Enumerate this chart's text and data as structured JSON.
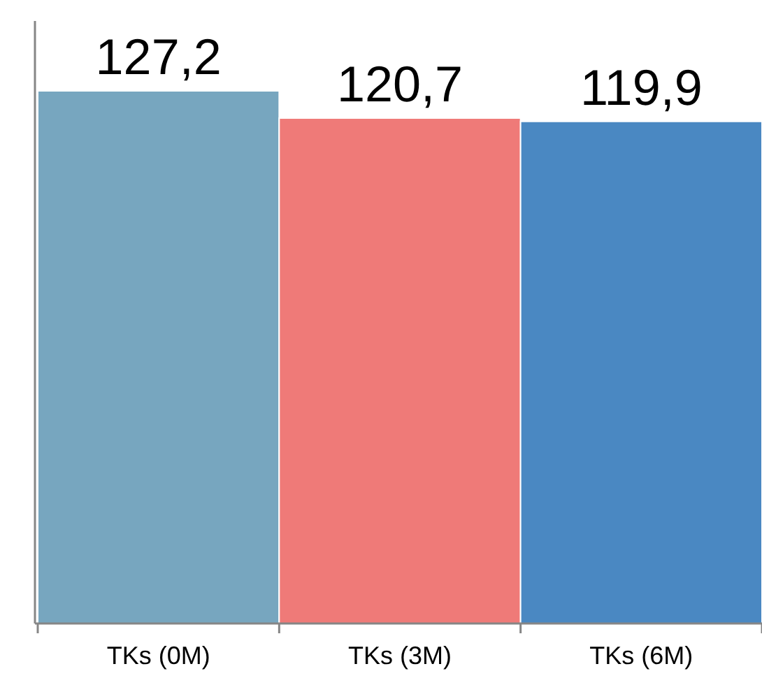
{
  "chart_data": {
    "type": "bar",
    "categories": [
      "TKs (0M)",
      "TKs (3M)",
      "TKs (6M)"
    ],
    "values": [
      127.2,
      120.7,
      119.9
    ],
    "colors": [
      "#77a6bf",
      "#ef7a78",
      "#4a88c2"
    ],
    "value_labels": [
      "127,2",
      "120,7",
      "119,9"
    ]
  }
}
